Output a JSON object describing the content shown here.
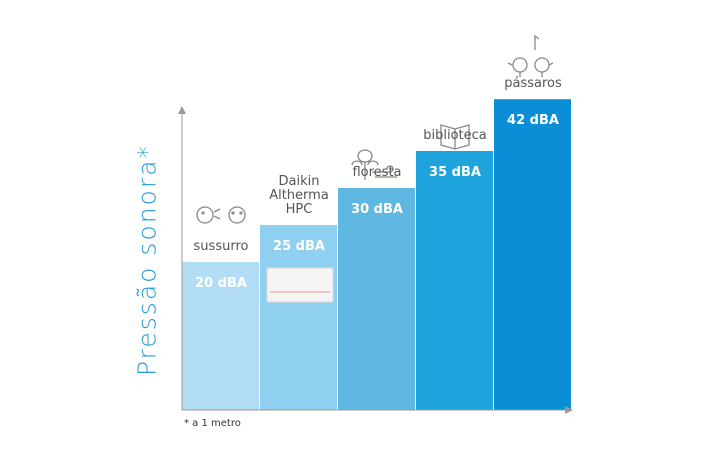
{
  "chart_data": {
    "type": "bar",
    "y_label": "Pressão sonora*",
    "categories": [
      "sussurro",
      "Daikin Altherma HPC",
      "floresta",
      "biblioteca",
      "pássaros"
    ],
    "values": [
      20,
      25,
      30,
      35,
      42
    ],
    "value_labels": [
      "20 dBA",
      "25 dBA",
      "30 dBA",
      "35 dBA",
      "42 dBA"
    ],
    "colors": [
      "#b3ddf4",
      "#8fd0f1",
      "#5fb8e1",
      "#1ea3dd",
      "#0a8fd7"
    ],
    "footnote": "* a 1 metro"
  }
}
